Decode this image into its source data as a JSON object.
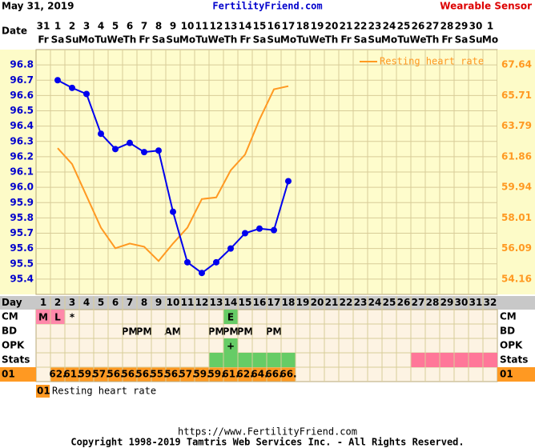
{
  "header": {
    "date": "May 31, 2019",
    "site": "FertilityFriend.com",
    "sensor": "Wearable Sensor"
  },
  "chart_data": {
    "type": "line",
    "date_label": "Date",
    "categories": [
      "31",
      "1",
      "2",
      "3",
      "4",
      "5",
      "6",
      "7",
      "8",
      "9",
      "10",
      "11",
      "12",
      "13",
      "14",
      "15",
      "16",
      "17",
      "18",
      "19",
      "20",
      "21",
      "22",
      "23",
      "24",
      "25",
      "26",
      "27",
      "28",
      "29",
      "30",
      "1"
    ],
    "weekdays": [
      "Fr",
      "Sa",
      "Su",
      "Mo",
      "Tu",
      "We",
      "Th",
      "Fr",
      "Sa",
      "Su",
      "Mo",
      "Tu",
      "We",
      "Th",
      "Fr",
      "Sa",
      "Su",
      "Mo",
      "Tu",
      "We",
      "Th",
      "Fr",
      "Sa",
      "Su",
      "Mo",
      "Tu",
      "We",
      "Th",
      "Fr",
      "Sa",
      "Su",
      "Mo"
    ],
    "series": [
      {
        "color": "#0000ee",
        "values": [
          null,
          96.7,
          96.65,
          96.61,
          96.35,
          96.25,
          96.29,
          96.23,
          96.24,
          95.84,
          95.51,
          95.44,
          95.51,
          95.6,
          95.7,
          95.73,
          95.72,
          96.04,
          null,
          null,
          null,
          null,
          null,
          null,
          null,
          null,
          null,
          null,
          null,
          null,
          null,
          null
        ]
      },
      {
        "name": "Resting heart rate",
        "color": "#ff9922",
        "axis": "y2",
        "values": [
          null,
          62.4,
          61.4,
          59.4,
          57.4,
          56.1,
          56.4,
          56.2,
          55.3,
          56.4,
          57.4,
          59.2,
          59.3,
          61.0,
          62.0,
          64.2,
          66.1,
          66.3,
          null,
          null,
          null,
          null,
          null,
          null,
          null,
          null,
          null,
          null,
          null,
          null,
          null,
          null
        ],
        "value_labels": [
          null,
          "62.",
          "61.",
          "59.",
          "57.",
          "56.",
          "56.",
          "56.",
          "55.",
          "56.",
          "57.",
          "59.",
          "59.",
          "61.",
          "62.",
          "64.",
          "66.",
          "66.",
          null,
          null,
          null,
          null,
          null,
          null,
          null,
          null,
          null,
          null,
          null,
          null,
          null,
          null
        ]
      }
    ],
    "ylim": [
      95.3,
      96.9
    ],
    "yticks": [
      96.8,
      96.7,
      96.6,
      96.5,
      96.4,
      96.3,
      96.2,
      96.1,
      {
        "value": 96,
        "label": "96.0"
      },
      95.9,
      95.8,
      95.7,
      95.6,
      95.5,
      95.4
    ],
    "y2lim": [
      53.2,
      68.6
    ],
    "y2ticks": [
      67.64,
      65.71,
      63.79,
      61.86,
      59.94,
      58.01,
      56.09,
      54.16
    ],
    "grid": true,
    "legend": "upper right"
  },
  "rows": {
    "day_label": "Day",
    "days": [
      1,
      2,
      3,
      4,
      5,
      6,
      7,
      8,
      9,
      10,
      11,
      12,
      13,
      14,
      15,
      16,
      17,
      18,
      19,
      20,
      21,
      22,
      23,
      24,
      25,
      26,
      27,
      28,
      29,
      30,
      31,
      32
    ],
    "cm": {
      "label": "CM",
      "cells": [
        {
          "text": "M",
          "color": "#ff88aa"
        },
        {
          "text": "L",
          "color": "#ff88aa"
        },
        {
          "text": "*"
        },
        null,
        null,
        null,
        null,
        null,
        null,
        null,
        null,
        null,
        null,
        {
          "text": "E",
          "color": "#66cc66"
        },
        null,
        null,
        null,
        null,
        null,
        null,
        null,
        null,
        null,
        null,
        null,
        null,
        null,
        null,
        null,
        null,
        null,
        null
      ]
    },
    "bd": {
      "label": "BD",
      "cells": [
        null,
        null,
        null,
        null,
        null,
        null,
        {
          "text": "PM"
        },
        {
          "text": "PM"
        },
        null,
        {
          "text": "AM"
        },
        null,
        null,
        {
          "text": "PM"
        },
        {
          "text": "PM"
        },
        {
          "text": "PM"
        },
        null,
        {
          "text": "PM"
        },
        null,
        null,
        null,
        null,
        null,
        null,
        null,
        null,
        null,
        null,
        null,
        null,
        null,
        null,
        null
      ]
    },
    "opk": {
      "label": "OPK",
      "cells": [
        null,
        null,
        null,
        null,
        null,
        null,
        null,
        null,
        null,
        null,
        null,
        null,
        null,
        {
          "text": "+",
          "color": "#66cc66"
        },
        null,
        null,
        null,
        null,
        null,
        null,
        null,
        null,
        null,
        null,
        null,
        null,
        null,
        null,
        null,
        null,
        null,
        null
      ]
    },
    "stats": {
      "label": "Stats",
      "colors": [
        null,
        null,
        null,
        null,
        null,
        null,
        null,
        null,
        null,
        null,
        null,
        null,
        "#66cc66",
        "#66cc66",
        "#66cc66",
        "#66cc66",
        "#66cc66",
        "#66cc66",
        null,
        null,
        null,
        null,
        null,
        null,
        null,
        null,
        "#ff7799",
        "#ff7799",
        "#ff7799",
        "#ff7799",
        "#ff7799",
        "#ff7799"
      ]
    },
    "hr_label": "01"
  },
  "footer": {
    "url": "https://www.FertilityFriend.com",
    "copyright": "Copyright 1998-2019 Tamtris Web Services Inc. - All Rights Reserved."
  }
}
